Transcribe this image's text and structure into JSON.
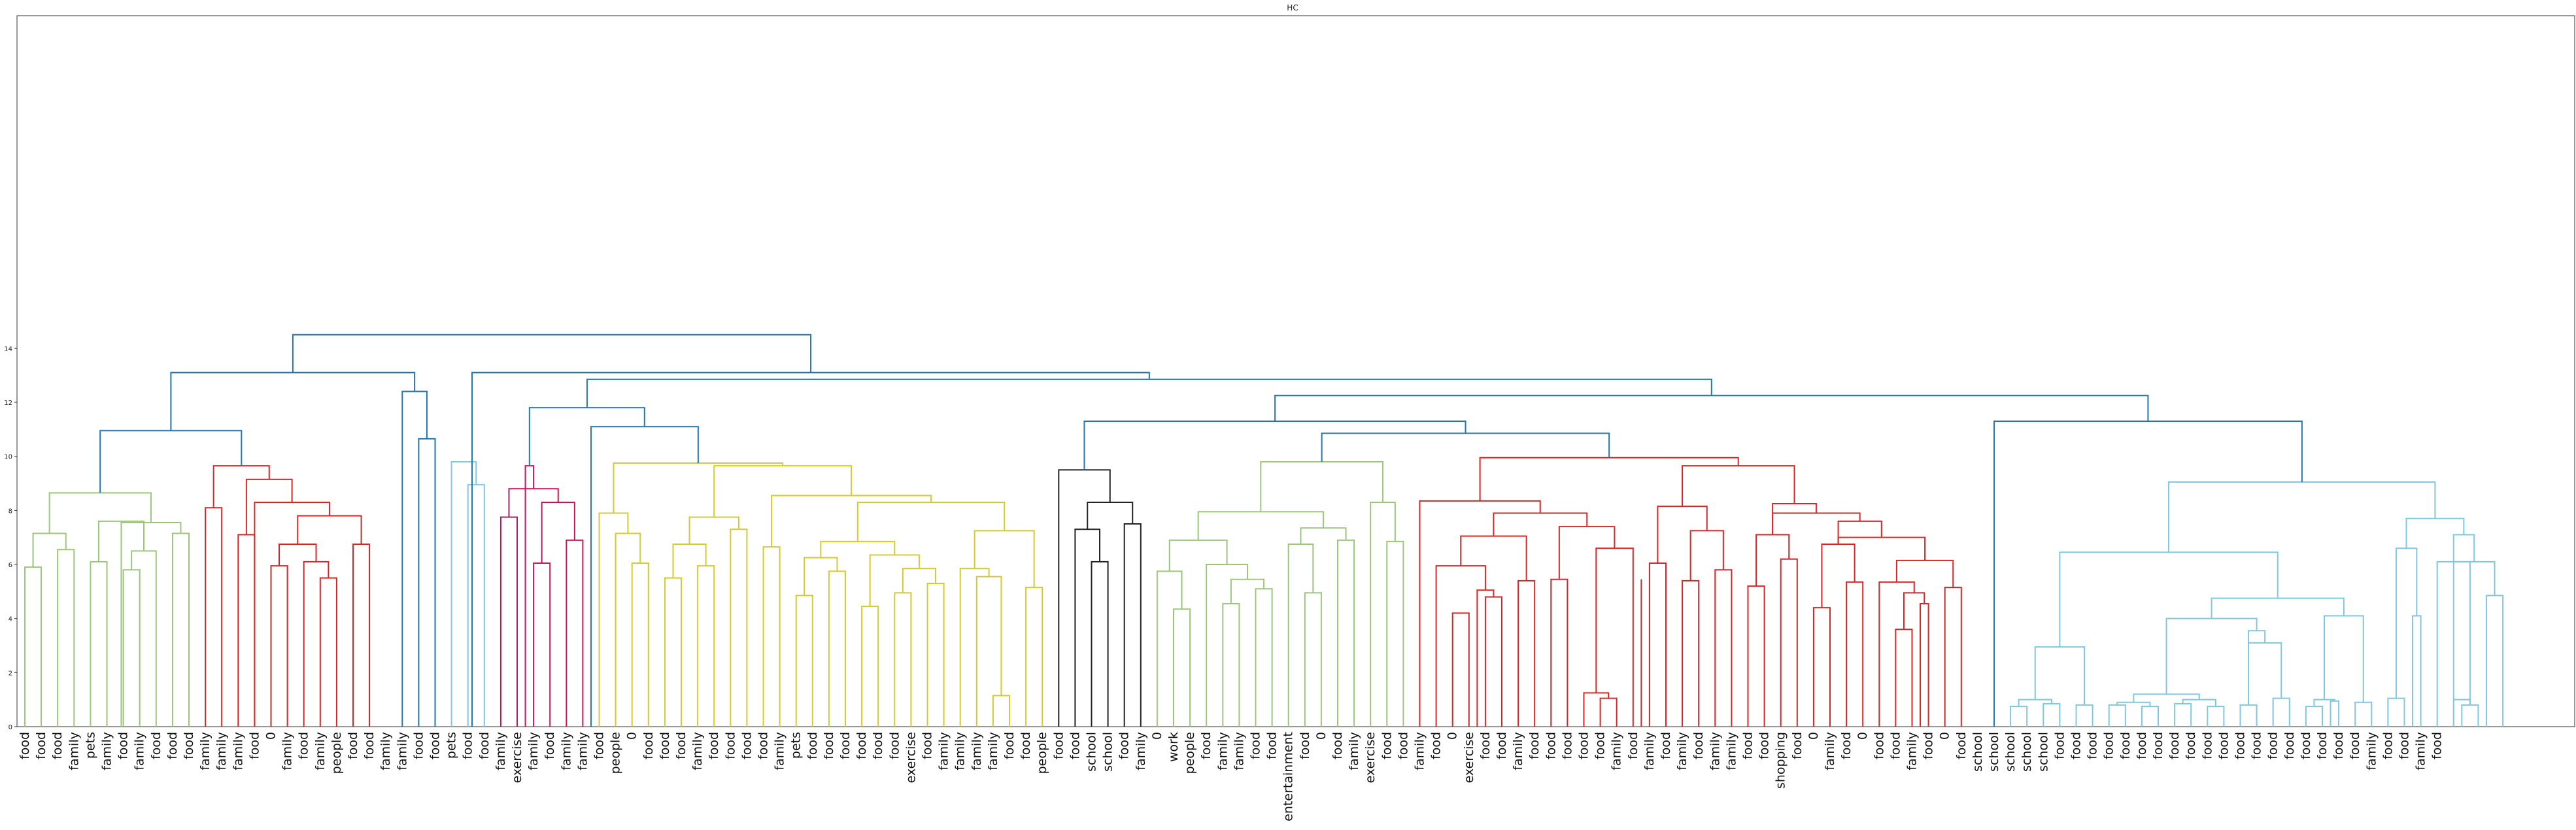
{
  "chart_data": {
    "type": "dendrogram",
    "title": "HC",
    "xlabel": "",
    "ylabel": "",
    "ylim": [
      0,
      26.3
    ],
    "yticks": [
      0,
      2,
      4,
      6,
      8,
      10,
      12,
      14
    ],
    "grid": false,
    "legend": "none",
    "cluster_colors": {
      "green": "#9CC67A",
      "red": "#D62728",
      "blue": "#1F77B4",
      "lightblue": "#7FC8DD",
      "magenta": "#C2185B",
      "yellow": "#D4CB2F",
      "black": "#222222"
    },
    "leaves": [
      "food",
      "food",
      "food",
      "family",
      "pets",
      "family",
      "food",
      "family",
      "food",
      "food",
      "food",
      "family",
      "family",
      "family",
      "food",
      "0",
      "family",
      "food",
      "family",
      "people",
      "food",
      "food",
      "family",
      "family",
      "food",
      "food",
      "pets",
      "food",
      "food",
      "family",
      "exercise",
      "family",
      "food",
      "family",
      "family",
      "food",
      "people",
      "0",
      "food",
      "food",
      "food",
      "family",
      "food",
      "food",
      "food",
      "food",
      "family",
      "pets",
      "food",
      "food",
      "food",
      "food",
      "food",
      "food",
      "exercise",
      "food",
      "family",
      "family",
      "family",
      "family",
      "food",
      "food",
      "people",
      "food",
      "food",
      "school",
      "school",
      "food",
      "family",
      "0",
      "work",
      "people",
      "food",
      "family",
      "family",
      "food",
      "food",
      "entertainment",
      "food",
      "0",
      "food",
      "family",
      "exercise",
      "food",
      "food",
      "family",
      "food",
      "0",
      "exercise",
      "food",
      "food",
      "family",
      "food",
      "food",
      "food",
      "food",
      "food",
      "family",
      "food",
      "family",
      "food",
      "family",
      "food",
      "family",
      "family",
      "food",
      "food",
      "shopping",
      "food",
      "0",
      "family",
      "food",
      "0",
      "food",
      "food",
      "family",
      "food",
      "0",
      "food",
      "school",
      "school",
      "school",
      "school",
      "school",
      "food",
      "food",
      "food",
      "food",
      "food",
      "food",
      "food",
      "food",
      "food",
      "food",
      "food",
      "food",
      "food",
      "food",
      "food",
      "food",
      "food",
      "food",
      "food",
      "family",
      "food",
      "food",
      "family",
      "food"
    ],
    "merges": [
      {
        "x1": 1,
        "x2": 2,
        "h": 5.9,
        "c": "green"
      },
      {
        "x1": 3,
        "x2": 4,
        "h": 6.55,
        "c": "green"
      },
      {
        "x1": 1.5,
        "x2": 3.5,
        "h": 7.15,
        "c": "green"
      },
      {
        "x1": 5,
        "x2": 6,
        "h": 6.1,
        "c": "green"
      },
      {
        "x1": 7,
        "x2": 8,
        "h": 5.8,
        "c": "green"
      },
      {
        "x1": 7.5,
        "x2": 9,
        "h": 6.5,
        "c": "green"
      },
      {
        "x1": 5.5,
        "x2": 8.25,
        "h": 7.6,
        "c": "green"
      },
      {
        "x1": 10,
        "x2": 11,
        "h": 7.15,
        "c": "green"
      },
      {
        "x1": 6.875,
        "x2": 10.5,
        "h": 7.55,
        "c": "green"
      },
      {
        "x1": 2.5,
        "x2": 8.6875,
        "h": 8.65,
        "c": "green"
      },
      {
        "x1": 12,
        "x2": 13,
        "h": 8.1,
        "c": "red"
      },
      {
        "x1": 14,
        "x2": 15,
        "h": 7.1,
        "c": "red"
      },
      {
        "x1": 16,
        "x2": 17,
        "h": 5.95,
        "c": "red"
      },
      {
        "x1": 19,
        "x2": 20,
        "h": 5.5,
        "c": "red"
      },
      {
        "x1": 18,
        "x2": 19.5,
        "h": 6.1,
        "c": "red"
      },
      {
        "x1": 16.5,
        "x2": 18.75,
        "h": 6.75,
        "c": "red"
      },
      {
        "x1": 21,
        "x2": 22,
        "h": 6.75,
        "c": "red"
      },
      {
        "x1": 17.625,
        "x2": 21.5,
        "h": 7.8,
        "c": "red"
      },
      {
        "x1": 15,
        "x2": 19.5625,
        "h": 8.3,
        "c": "red"
      },
      {
        "x1": 14.5,
        "x2": 17.28,
        "h": 9.15,
        "c": "red"
      },
      {
        "x1": 12.5,
        "x2": 15.89,
        "h": 9.65,
        "c": "red"
      },
      {
        "x1": 5.59,
        "x2": 14.2,
        "h": 10.95,
        "c": "blue"
      },
      {
        "x1": 25,
        "x2": 26,
        "h": 10.65,
        "c": "blue"
      },
      {
        "x1": 24,
        "x2": 25.5,
        "h": 12.4,
        "c": "blue"
      },
      {
        "x1": 9.9,
        "x2": 24.75,
        "h": 13.1,
        "c": "blue"
      },
      {
        "x1": 28,
        "x2": 29,
        "h": 8.95,
        "c": "lightblue"
      },
      {
        "x1": 27,
        "x2": 28.5,
        "h": 9.8,
        "c": "lightblue"
      },
      {
        "x1": 30,
        "x2": 31,
        "h": 7.75,
        "c": "magenta"
      },
      {
        "x1": 32,
        "x2": 33,
        "h": 6.05,
        "c": "magenta"
      },
      {
        "x1": 34,
        "x2": 35,
        "h": 6.9,
        "c": "magenta"
      },
      {
        "x1": 32.5,
        "x2": 34.5,
        "h": 8.3,
        "c": "magenta"
      },
      {
        "x1": 30.5,
        "x2": 33.5,
        "h": 8.8,
        "c": "magenta"
      },
      {
        "x1": 31.5,
        "x2": 32,
        "h": 9.65,
        "c": "magenta"
      },
      {
        "x1": 38,
        "x2": 39,
        "h": 6.05,
        "c": "yellow"
      },
      {
        "x1": 37,
        "x2": 38.5,
        "h": 7.15,
        "c": "yellow"
      },
      {
        "x1": 36,
        "x2": 37.75,
        "h": 7.9,
        "c": "yellow"
      },
      {
        "x1": 40,
        "x2": 41,
        "h": 5.5,
        "c": "yellow"
      },
      {
        "x1": 42,
        "x2": 43,
        "h": 5.95,
        "c": "yellow"
      },
      {
        "x1": 40.5,
        "x2": 42.5,
        "h": 6.75,
        "c": "yellow"
      },
      {
        "x1": 44,
        "x2": 45,
        "h": 7.3,
        "c": "yellow"
      },
      {
        "x1": 41.5,
        "x2": 44.5,
        "h": 7.75,
        "c": "yellow"
      },
      {
        "x1": 46,
        "x2": 47,
        "h": 6.65,
        "c": "yellow"
      },
      {
        "x1": 48,
        "x2": 49,
        "h": 4.85,
        "c": "yellow"
      },
      {
        "x1": 50,
        "x2": 51,
        "h": 5.75,
        "c": "yellow"
      },
      {
        "x1": 48.5,
        "x2": 50.5,
        "h": 6.25,
        "c": "yellow"
      },
      {
        "x1": 52,
        "x2": 53,
        "h": 4.45,
        "c": "yellow"
      },
      {
        "x1": 54,
        "x2": 55,
        "h": 4.95,
        "c": "yellow"
      },
      {
        "x1": 56,
        "x2": 57,
        "h": 5.3,
        "c": "yellow"
      },
      {
        "x1": 54.5,
        "x2": 56.5,
        "h": 5.85,
        "c": "yellow"
      },
      {
        "x1": 52.5,
        "x2": 55.5,
        "h": 6.35,
        "c": "yellow"
      },
      {
        "x1": 49.5,
        "x2": 54,
        "h": 6.85,
        "c": "yellow"
      },
      {
        "x1": 60,
        "x2": 61,
        "h": 1.15,
        "c": "yellow"
      },
      {
        "x1": 59,
        "x2": 60.5,
        "h": 5.55,
        "c": "yellow"
      },
      {
        "x1": 58,
        "x2": 59.75,
        "h": 5.85,
        "c": "yellow"
      },
      {
        "x1": 62,
        "x2": 63,
        "h": 5.15,
        "c": "yellow"
      },
      {
        "x1": 62.5,
        "x2": 62.5,
        "h": 5.8,
        "c": "yellow"
      },
      {
        "x1": 58.875,
        "x2": 62.5,
        "h": 7.25,
        "c": "yellow"
      },
      {
        "x1": 51.75,
        "x2": 60.69,
        "h": 8.3,
        "c": "yellow"
      },
      {
        "x1": 46.5,
        "x2": 56.22,
        "h": 8.55,
        "c": "yellow"
      },
      {
        "x1": 43,
        "x2": 51.36,
        "h": 9.65,
        "c": "yellow"
      },
      {
        "x1": 36.875,
        "x2": 47.18,
        "h": 9.75,
        "c": "yellow"
      },
      {
        "x1": 35.5,
        "x2": 42.03,
        "h": 11.1,
        "c": "blue"
      },
      {
        "x1": 31.75,
        "x2": 38.76,
        "h": 11.8,
        "c": "blue"
      },
      {
        "x1": 66,
        "x2": 67,
        "h": 6.1,
        "c": "black"
      },
      {
        "x1": 65,
        "x2": 66.5,
        "h": 7.3,
        "c": "black"
      },
      {
        "x1": 68,
        "x2": 69,
        "h": 7.5,
        "c": "black"
      },
      {
        "x1": 65.75,
        "x2": 68.5,
        "h": 8.3,
        "c": "black"
      },
      {
        "x1": 64,
        "x2": 67.125,
        "h": 9.5,
        "c": "black"
      },
      {
        "x1": 71,
        "x2": 72,
        "h": 4.35,
        "c": "green"
      },
      {
        "x1": 70,
        "x2": 71.5,
        "h": 5.75,
        "c": "green"
      },
      {
        "x1": 74,
        "x2": 75,
        "h": 4.55,
        "c": "green"
      },
      {
        "x1": 76,
        "x2": 77,
        "h": 5.1,
        "c": "green"
      },
      {
        "x1": 74.5,
        "x2": 76.5,
        "h": 5.45,
        "c": "green"
      },
      {
        "x1": 73,
        "x2": 75.5,
        "h": 6.0,
        "c": "green"
      },
      {
        "x1": 70.75,
        "x2": 74.25,
        "h": 6.9,
        "c": "green"
      },
      {
        "x1": 79,
        "x2": 80,
        "h": 4.95,
        "c": "green"
      },
      {
        "x1": 79.5,
        "x2": 79.5,
        "h": 5.6,
        "c": "green"
      },
      {
        "x1": 78,
        "x2": 79.5,
        "h": 6.75,
        "c": "green"
      },
      {
        "x1": 81,
        "x2": 82,
        "h": 6.9,
        "c": "green"
      },
      {
        "x1": 78.75,
        "x2": 81.5,
        "h": 7.35,
        "c": "green"
      },
      {
        "x1": 72.5,
        "x2": 80.125,
        "h": 7.95,
        "c": "green"
      },
      {
        "x1": 84,
        "x2": 85,
        "h": 6.85,
        "c": "green"
      },
      {
        "x1": 83,
        "x2": 84.5,
        "h": 8.3,
        "c": "green"
      },
      {
        "x1": 83.75,
        "x2": 83.75,
        "h": 8.45,
        "c": "green"
      },
      {
        "x1": 76.31,
        "x2": 83.75,
        "h": 9.8,
        "c": "green"
      },
      {
        "x1": 88,
        "x2": 89,
        "h": 4.2,
        "c": "red"
      },
      {
        "x1": 90,
        "x2": 91,
        "h": 4.8,
        "c": "red"
      },
      {
        "x1": 89.5,
        "x2": 90.5,
        "h": 5.05,
        "c": "red"
      },
      {
        "x1": 87,
        "x2": 90,
        "h": 5.95,
        "c": "red"
      },
      {
        "x1": 92,
        "x2": 93,
        "h": 5.4,
        "c": "red"
      },
      {
        "x1": 92.5,
        "x2": 92.5,
        "h": 6.45,
        "c": "red"
      },
      {
        "x1": 88.5,
        "x2": 92.5,
        "h": 7.05,
        "c": "red"
      },
      {
        "x1": 94,
        "x2": 95,
        "h": 5.45,
        "c": "red"
      },
      {
        "x1": 94.5,
        "x2": 94.5,
        "h": 5.65,
        "c": "red"
      },
      {
        "x1": 97,
        "x2": 98,
        "h": 1.05,
        "c": "red"
      },
      {
        "x1": 96,
        "x2": 97.5,
        "h": 1.25,
        "c": "red"
      },
      {
        "x1": 96.75,
        "x2": 99,
        "h": 6.6,
        "c": "red"
      },
      {
        "x1": 99.5,
        "x2": 99.5,
        "h": 5.45,
        "c": "red"
      },
      {
        "x1": 94.5,
        "x2": 97.87,
        "h": 7.4,
        "c": "red"
      },
      {
        "x1": 90.5,
        "x2": 96.19,
        "h": 7.9,
        "c": "red"
      },
      {
        "x1": 86,
        "x2": 93.34,
        "h": 8.35,
        "c": "red"
      },
      {
        "x1": 100,
        "x2": 101,
        "h": 6.05,
        "c": "red"
      },
      {
        "x1": 100.5,
        "x2": 100.5,
        "h": 6.45,
        "c": "red"
      },
      {
        "x1": 102,
        "x2": 103,
        "h": 5.4,
        "c": "red"
      },
      {
        "x1": 104,
        "x2": 105,
        "h": 5.8,
        "c": "red"
      },
      {
        "x1": 102.5,
        "x2": 104.5,
        "h": 7.25,
        "c": "red"
      },
      {
        "x1": 100.5,
        "x2": 103.5,
        "h": 8.15,
        "c": "red"
      },
      {
        "x1": 106,
        "x2": 107,
        "h": 5.2,
        "c": "red"
      },
      {
        "x1": 106.5,
        "x2": 106.5,
        "h": 5.55,
        "c": "red"
      },
      {
        "x1": 108,
        "x2": 109,
        "h": 6.2,
        "c": "red"
      },
      {
        "x1": 106.5,
        "x2": 108.5,
        "h": 7.1,
        "c": "red"
      },
      {
        "x1": 110,
        "x2": 111,
        "h": 4.4,
        "c": "red"
      },
      {
        "x1": 112,
        "x2": 113,
        "h": 5.35,
        "c": "red"
      },
      {
        "x1": 112.5,
        "x2": 112.5,
        "h": 5.85,
        "c": "red"
      },
      {
        "x1": 110.5,
        "x2": 112.5,
        "h": 6.75,
        "c": "red"
      },
      {
        "x1": 115,
        "x2": 116,
        "h": 3.6,
        "c": "red"
      },
      {
        "x1": 116.5,
        "x2": 117,
        "h": 4.55,
        "c": "red"
      },
      {
        "x1": 115.5,
        "x2": 116.75,
        "h": 4.95,
        "c": "red"
      },
      {
        "x1": 114,
        "x2": 116.13,
        "h": 5.35,
        "c": "red"
      },
      {
        "x1": 118,
        "x2": 119,
        "h": 5.15,
        "c": "red"
      },
      {
        "x1": 118.5,
        "x2": 118.5,
        "h": 5.75,
        "c": "red"
      },
      {
        "x1": 115.06,
        "x2": 118.5,
        "h": 6.15,
        "c": "red"
      },
      {
        "x1": 111.5,
        "x2": 116.78,
        "h": 7.0,
        "c": "red"
      },
      {
        "x1": 111.5,
        "x2": 114.14,
        "h": 7.6,
        "c": "red"
      },
      {
        "x1": 107.5,
        "x2": 112.82,
        "h": 7.9,
        "c": "red"
      },
      {
        "x1": 107.5,
        "x2": 110.16,
        "h": 8.25,
        "c": "red"
      },
      {
        "x1": 102,
        "x2": 108.83,
        "h": 9.65,
        "c": "red"
      },
      {
        "x1": 89.67,
        "x2": 105.41,
        "h": 9.95,
        "c": "red"
      },
      {
        "x1": 80.03,
        "x2": 97.54,
        "h": 10.85,
        "c": "blue"
      },
      {
        "x1": 65.56,
        "x2": 88.79,
        "h": 11.3,
        "c": "blue"
      },
      {
        "x1": 122,
        "x2": 123,
        "h": 0.75,
        "c": "lightblue"
      },
      {
        "x1": 124,
        "x2": 125,
        "h": 0.85,
        "c": "lightblue"
      },
      {
        "x1": 122.5,
        "x2": 124.5,
        "h": 1.0,
        "c": "lightblue"
      },
      {
        "x1": 126,
        "x2": 127,
        "h": 0.8,
        "c": "lightblue"
      },
      {
        "x1": 126.5,
        "x2": 126.5,
        "h": 1.15,
        "c": "lightblue"
      },
      {
        "x1": 123.5,
        "x2": 126.5,
        "h": 2.95,
        "c": "lightblue"
      },
      {
        "x1": 128,
        "x2": 129,
        "h": 0.8,
        "c": "lightblue"
      },
      {
        "x1": 130,
        "x2": 131,
        "h": 0.75,
        "c": "lightblue"
      },
      {
        "x1": 128.5,
        "x2": 130.5,
        "h": 0.9,
        "c": "lightblue"
      },
      {
        "x1": 132,
        "x2": 133,
        "h": 0.85,
        "c": "lightblue"
      },
      {
        "x1": 134,
        "x2": 135,
        "h": 0.75,
        "c": "lightblue"
      },
      {
        "x1": 132.5,
        "x2": 134.5,
        "h": 1.0,
        "c": "lightblue"
      },
      {
        "x1": 129.5,
        "x2": 133.5,
        "h": 1.2,
        "c": "lightblue"
      },
      {
        "x1": 136,
        "x2": 137,
        "h": 0.8,
        "c": "lightblue"
      },
      {
        "x1": 138,
        "x2": 139,
        "h": 1.05,
        "c": "lightblue"
      },
      {
        "x1": 136.5,
        "x2": 138.5,
        "h": 3.1,
        "c": "lightblue"
      },
      {
        "x1": 136.5,
        "x2": 137.5,
        "h": 3.55,
        "c": "lightblue"
      },
      {
        "x1": 131.5,
        "x2": 137,
        "h": 4.0,
        "c": "lightblue"
      },
      {
        "x1": 140,
        "x2": 141,
        "h": 0.75,
        "c": "lightblue"
      },
      {
        "x1": 141.5,
        "x2": 142,
        "h": 0.95,
        "c": "lightblue"
      },
      {
        "x1": 140.5,
        "x2": 141.75,
        "h": 1.0,
        "c": "lightblue"
      },
      {
        "x1": 143,
        "x2": 144,
        "h": 0.9,
        "c": "lightblue"
      },
      {
        "x1": 143.5,
        "x2": 143.5,
        "h": 1.15,
        "c": "lightblue"
      },
      {
        "x1": 141.12,
        "x2": 143.5,
        "h": 4.1,
        "c": "lightblue"
      },
      {
        "x1": 134.25,
        "x2": 142.31,
        "h": 4.75,
        "c": "lightblue"
      },
      {
        "x1": 125,
        "x2": 138.28,
        "h": 6.45,
        "c": "lightblue"
      },
      {
        "x1": 145,
        "x2": 146,
        "h": 1.05,
        "c": "lightblue"
      },
      {
        "x1": 146.5,
        "x2": 147,
        "h": 4.1,
        "c": "lightblue"
      },
      {
        "x1": 145.5,
        "x2": 146.75,
        "h": 6.6,
        "c": "lightblue"
      },
      {
        "x1": 149,
        "x2": 150,
        "h": 1.0,
        "c": "lightblue"
      },
      {
        "x1": 149.5,
        "x2": 150.5,
        "h": 0.8,
        "c": "lightblue"
      },
      {
        "x1": 148,
        "x2": 150,
        "h": 6.1,
        "c": "lightblue"
      },
      {
        "x1": 151,
        "x2": 152,
        "h": 4.85,
        "c": "lightblue"
      },
      {
        "x1": 149,
        "x2": 151.5,
        "h": 6.1,
        "c": "lightblue"
      },
      {
        "x1": 149,
        "x2": 150.25,
        "h": 7.1,
        "c": "lightblue"
      },
      {
        "x1": 146.12,
        "x2": 149.62,
        "h": 7.7,
        "c": "lightblue"
      },
      {
        "x1": 131.64,
        "x2": 147.87,
        "h": 9.05,
        "c": "lightblue"
      },
      {
        "x1": 121,
        "x2": 139.76,
        "h": 11.3,
        "c": "blue"
      },
      {
        "x1": 77.18,
        "x2": 130.38,
        "h": 12.25,
        "c": "blue"
      },
      {
        "x1": 35.26,
        "x2": 103.78,
        "h": 12.85,
        "c": "blue"
      },
      {
        "x1": 28.25,
        "x2": 69.52,
        "h": 13.1,
        "c": "blue"
      },
      {
        "x1": 17.33,
        "x2": 48.89,
        "h": 14.5,
        "c": "blue"
      }
    ]
  }
}
